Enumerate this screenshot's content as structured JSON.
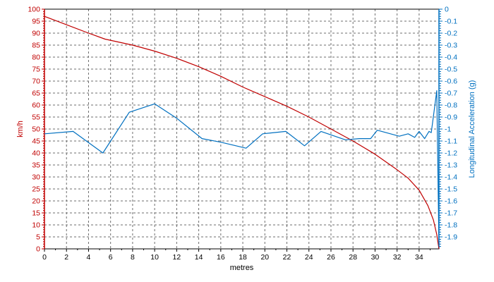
{
  "chart_data": {
    "type": "line",
    "xlabel": "metres",
    "ylabel_left": "km/h",
    "ylabel_right": "Longitudinal Acceleration (g)",
    "xlim": [
      0,
      35.8
    ],
    "ylim_left": [
      0,
      100
    ],
    "ylim_right": [
      -2.0,
      0
    ],
    "x_ticks": [
      "0",
      "2",
      "4",
      "6",
      "8",
      "10",
      "12",
      "14",
      "16",
      "18",
      "20",
      "22",
      "24",
      "26",
      "28",
      "30",
      "32",
      "34"
    ],
    "x_tick_values": [
      0,
      2,
      4,
      6,
      8,
      10,
      12,
      14,
      16,
      18,
      20,
      22,
      24,
      26,
      28,
      30,
      32,
      34
    ],
    "y_left_ticks": [
      "0",
      "5",
      "10",
      "15",
      "20",
      "25",
      "30",
      "35",
      "40",
      "45",
      "50",
      "55",
      "60",
      "65",
      "70",
      "75",
      "80",
      "85",
      "90",
      "95",
      "100"
    ],
    "y_left_tick_values": [
      0,
      5,
      10,
      15,
      20,
      25,
      30,
      35,
      40,
      45,
      50,
      55,
      60,
      65,
      70,
      75,
      80,
      85,
      90,
      95,
      100
    ],
    "y_right_ticks": [
      "0",
      "-0.1",
      "-0.2",
      "-0.3",
      "-0.4",
      "-0.5",
      "-0.6",
      "-0.7",
      "-0.8",
      "-0.9",
      "-1",
      "-1.1",
      "-1.2",
      "-1.3",
      "-1.4",
      "-1.5",
      "-1.6",
      "-1.7",
      "-1.8",
      "-1.9"
    ],
    "y_right_tick_values": [
      0,
      -0.1,
      -0.2,
      -0.3,
      -0.4,
      -0.5,
      -0.6,
      -0.7,
      -0.8,
      -0.9,
      -1,
      -1.1,
      -1.2,
      -1.3,
      -1.4,
      -1.5,
      -1.6,
      -1.7,
      -1.8,
      -1.9
    ],
    "grid": true,
    "colors": {
      "speed": "#c00000",
      "accel": "#0070c0",
      "grid": "#6e6e6e",
      "frame": "#000000"
    },
    "series": [
      {
        "axis": "left",
        "color": "#c00000",
        "x": [
          0,
          2,
          4,
          5.5,
          8,
          10,
          12,
          14,
          16,
          18,
          20,
          22,
          24,
          26,
          28,
          30,
          32,
          33,
          34,
          34.8,
          35.3,
          35.6,
          35.8
        ],
        "y": [
          97,
          93.5,
          90,
          87.5,
          85,
          82.5,
          79.5,
          76,
          72,
          67.5,
          63.5,
          59.5,
          55,
          50,
          45,
          39.5,
          33,
          29.5,
          24.5,
          18,
          12,
          6,
          0
        ]
      },
      {
        "axis": "right",
        "color": "#0070c0",
        "x": [
          0,
          2.6,
          5.3,
          7.7,
          10,
          12,
          14.3,
          16,
          18.3,
          19.8,
          21.9,
          23.6,
          25.1,
          27.3,
          28.6,
          29.6,
          30.2,
          31.4,
          32.2,
          33,
          33.6,
          34,
          34.5,
          34.9,
          35.1,
          35.4,
          35.6,
          35.8
        ],
        "y": [
          -1.04,
          -1.02,
          -1.2,
          -0.86,
          -0.79,
          -0.91,
          -1.08,
          -1.11,
          -1.16,
          -1.04,
          -1.02,
          -1.14,
          -1.02,
          -1.09,
          -1.08,
          -1.08,
          -1.01,
          -1.04,
          -1.06,
          -1.04,
          -1.07,
          -1.02,
          -1.08,
          -1.02,
          -1.03,
          -0.82,
          -0.68,
          -1.98
        ]
      }
    ]
  }
}
